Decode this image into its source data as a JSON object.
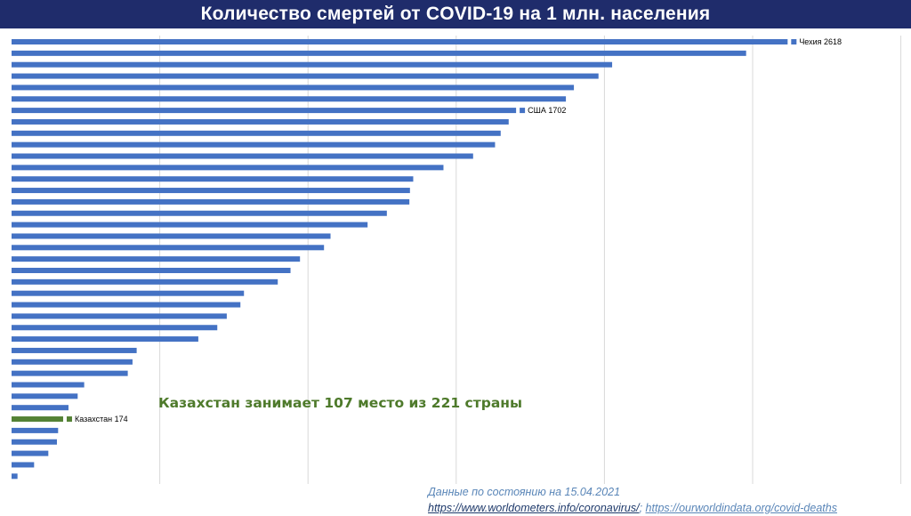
{
  "title": "Количество смертей от COVID-19 на 1 млн. населения",
  "note": "Казахстан занимает 107 место из 221 страны",
  "source": {
    "date_line": "Данные по состоянию на 15.04.2021",
    "link1": "https://www.worldometers.info/coronavirus/",
    "separator": "; ",
    "link2": "https://ourworldindata.org/covid-deaths"
  },
  "colors": {
    "bar": "#4472c4",
    "highlight": "#548235",
    "grid": "#d9d9d9",
    "header_bg": "#1f2c6b"
  },
  "chart_data": {
    "type": "bar",
    "orientation": "horizontal",
    "grid": true,
    "xlim": [
      0,
      3000
    ],
    "values": [
      2618,
      2478,
      2026,
      1980,
      1897,
      1870,
      1702,
      1677,
      1650,
      1631,
      1557,
      1457,
      1355,
      1344,
      1342,
      1266,
      1201,
      1076,
      1054,
      973,
      941,
      898,
      784,
      772,
      726,
      694,
      630,
      422,
      408,
      392,
      245,
      223,
      192,
      174,
      157,
      153,
      124,
      76,
      20
    ],
    "highlight_index": 33,
    "data_labels": [
      {
        "index": 0,
        "text": "Чехия 2618"
      },
      {
        "index": 6,
        "text": "США 1702"
      },
      {
        "index": 33,
        "text": "Казахстан 174"
      }
    ]
  }
}
